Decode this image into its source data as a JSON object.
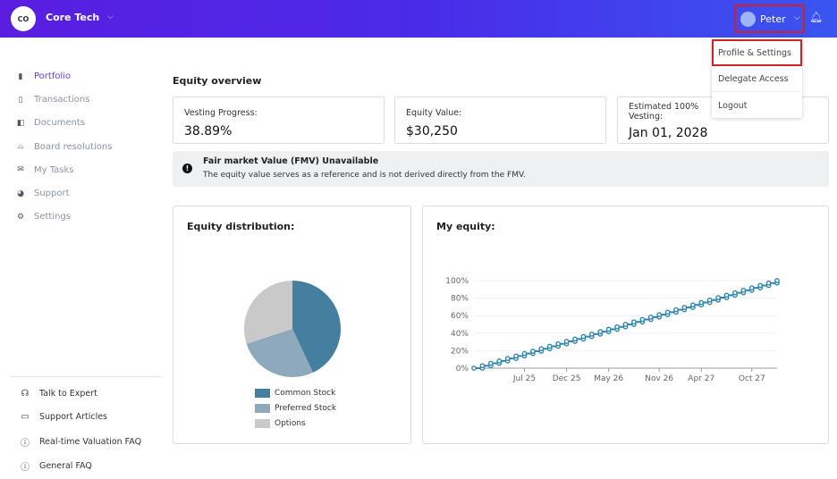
{
  "header": {
    "logo": "CO",
    "company": "Core Tech",
    "user": "Peter"
  },
  "user_menu": {
    "items": [
      "Profile & Settings",
      "Delegate Access",
      "Logout"
    ],
    "selected": 0
  },
  "sidebar": {
    "items": [
      {
        "label": "Portfolio",
        "icon": "portfolio-icon",
        "active": true
      },
      {
        "label": "Transactions",
        "icon": "clipboard-icon"
      },
      {
        "label": "Documents",
        "icon": "documents-icon"
      },
      {
        "label": "Board resolutions",
        "icon": "board-icon"
      },
      {
        "label": "My Tasks",
        "icon": "mail-icon"
      },
      {
        "label": "Support",
        "icon": "support-icon"
      },
      {
        "label": "Settings",
        "icon": "gear-icon"
      }
    ],
    "bottom": [
      {
        "label": "Talk to Expert",
        "icon": "headphones-icon"
      },
      {
        "label": "Support Articles",
        "icon": "book-icon"
      },
      {
        "label": "Real-time Valuation FAQ",
        "icon": "question-icon"
      },
      {
        "label": "General FAQ",
        "icon": "question-icon"
      }
    ]
  },
  "main": {
    "title": "Equity overview",
    "cards": [
      {
        "label": "Vesting Progress:",
        "value": "38.89%"
      },
      {
        "label": "Equity Value:",
        "value": "$30,250"
      },
      {
        "label": "Estimated 100% Vesting:",
        "value": "Jan 01, 2028"
      }
    ],
    "notice": {
      "title": "Fair market Value (FMV) Unavailable",
      "text": "The equity value serves as a reference and is not derived directly from the FMV."
    }
  },
  "chart_data": [
    {
      "type": "pie",
      "title": "Equity distribution:",
      "categories": [
        "Common Stock",
        "Preferred Stock",
        "Options"
      ],
      "values": [
        43,
        27,
        30
      ],
      "colors": [
        "#457fa0",
        "#8ea9bb",
        "#c9c9c9"
      ],
      "legend": "bottom"
    },
    {
      "type": "line",
      "title": "My equity:",
      "x_start": "Jan 25",
      "x_end": "Jan 28",
      "xticks": [
        "Jul 25",
        "Dec 25",
        "May 26",
        "Nov 26",
        "Apr 27",
        "Oct 27"
      ],
      "xtick_months": [
        6,
        11,
        16,
        22,
        27,
        33
      ],
      "values": [
        0,
        2.8,
        5.6,
        8.3,
        11.1,
        13.9,
        16.7,
        19.4,
        22.2,
        25,
        27.8,
        30.6,
        33.3,
        36.1,
        38.9,
        41.7,
        44.4,
        47.2,
        50,
        52.8,
        55.6,
        58.3,
        61.1,
        63.9,
        66.7,
        69.4,
        72.2,
        75,
        77.8,
        80.6,
        83.3,
        86.1,
        88.9,
        91.7,
        94.4,
        97.2,
        100
      ],
      "yticks": [
        "0%",
        "20%",
        "40%",
        "60%",
        "80%",
        "100%"
      ],
      "ylim": [
        0,
        100
      ],
      "grid": true,
      "color": "#2e86b0"
    }
  ]
}
